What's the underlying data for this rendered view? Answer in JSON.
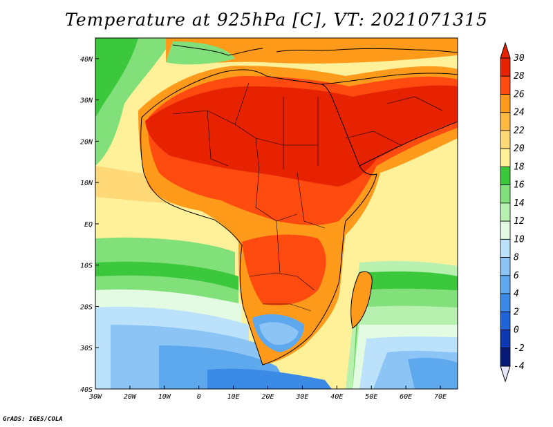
{
  "title": "Temperature at 925hPa [C], VT: 2021071315",
  "credit": "GrADS: IGES/COLA",
  "map": {
    "lon_range": [
      -30,
      75
    ],
    "lat_range": [
      -40,
      45
    ],
    "lon_ticks": [
      {
        "value": -30,
        "label": "30W"
      },
      {
        "value": -20,
        "label": "20W"
      },
      {
        "value": -10,
        "label": "10W"
      },
      {
        "value": 0,
        "label": "0"
      },
      {
        "value": 10,
        "label": "10E"
      },
      {
        "value": 20,
        "label": "20E"
      },
      {
        "value": 30,
        "label": "30E"
      },
      {
        "value": 40,
        "label": "40E"
      },
      {
        "value": 50,
        "label": "50E"
      },
      {
        "value": 60,
        "label": "60E"
      },
      {
        "value": 70,
        "label": "70E"
      }
    ],
    "lat_ticks": [
      {
        "value": 40,
        "label": "40N"
      },
      {
        "value": 30,
        "label": "30N"
      },
      {
        "value": 20,
        "label": "20N"
      },
      {
        "value": 10,
        "label": "10N"
      },
      {
        "value": 0,
        "label": "EQ"
      },
      {
        "value": -10,
        "label": "10S"
      },
      {
        "value": -20,
        "label": "20S"
      },
      {
        "value": -30,
        "label": "30S"
      },
      {
        "value": -40,
        "label": "40S"
      }
    ]
  },
  "colorbar": {
    "levels": [
      {
        "label": "30",
        "color": "#ff6a1f"
      },
      {
        "label": "28",
        "color": "#e62200"
      },
      {
        "label": "26",
        "color": "#ff4a10"
      },
      {
        "label": "24",
        "color": "#ff9a1a"
      },
      {
        "label": "22",
        "color": "#ffb840"
      },
      {
        "label": "20",
        "color": "#ffd877"
      },
      {
        "label": "18",
        "color": "#fff09a"
      },
      {
        "label": "16",
        "color": "#3cc83c"
      },
      {
        "label": "14",
        "color": "#82e07a"
      },
      {
        "label": "12",
        "color": "#b8f0b0"
      },
      {
        "label": "10",
        "color": "#e2fbe2"
      },
      {
        "label": "8",
        "color": "#bce2fb"
      },
      {
        "label": "6",
        "color": "#8cc5f5"
      },
      {
        "label": "4",
        "color": "#5ea8ee"
      },
      {
        "label": "2",
        "color": "#3a8ae6"
      },
      {
        "label": "0",
        "color": "#1f64d8"
      },
      {
        "label": "-2",
        "color": "#0e38b0"
      },
      {
        "label": "-4",
        "color": "#081a78"
      }
    ],
    "bottom_tip_color": "#e8e8ff",
    "top_tip_color": "#e62200"
  },
  "colors": {
    "ocean_south": "#8cc5f5",
    "ocean_warm": "#fff09a",
    "land_hot": "#e62200"
  }
}
